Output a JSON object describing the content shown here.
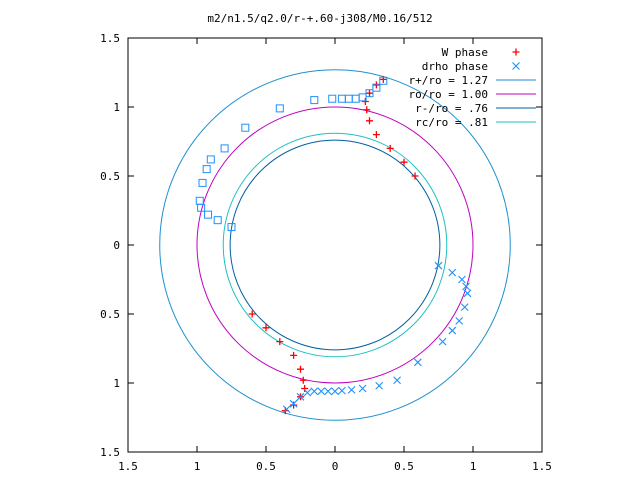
{
  "chart_data": {
    "type": "scatter",
    "title": "m2/n1.5/q2.0/r-+.60-j308/M0.16/512",
    "xlim": [
      -1.5,
      1.5
    ],
    "ylim": [
      -1.5,
      1.5
    ],
    "x_ticks": [
      {
        "value": -1.5,
        "label": "1.5"
      },
      {
        "value": -1.0,
        "label": "1"
      },
      {
        "value": -0.5,
        "label": "0.5"
      },
      {
        "value": 0.0,
        "label": "0"
      },
      {
        "value": 0.5,
        "label": "0.5"
      },
      {
        "value": 1.0,
        "label": "1"
      },
      {
        "value": 1.5,
        "label": "1.5"
      }
    ],
    "y_ticks": [
      {
        "value": 1.5,
        "label": "1.5"
      },
      {
        "value": 1.0,
        "label": "1"
      },
      {
        "value": 0.5,
        "label": "0.5"
      },
      {
        "value": 0.0,
        "label": "0"
      },
      {
        "value": -0.5,
        "label": "0.5"
      },
      {
        "value": -1.0,
        "label": "1"
      },
      {
        "value": -1.5,
        "label": "1.5"
      }
    ],
    "grid": false,
    "legend_position": "top-right",
    "series": [
      {
        "name": "W phase",
        "marker": "plus",
        "color": "#ff0000",
        "arms": [
          {
            "x": [
              0.58,
              0.5,
              0.4,
              0.3,
              0.25,
              0.23,
              0.22,
              0.25,
              0.3,
              0.35
            ],
            "y": [
              0.5,
              0.6,
              0.7,
              0.8,
              0.9,
              0.98,
              1.04,
              1.1,
              1.16,
              1.2
            ]
          },
          {
            "x": [
              -0.6,
              -0.5,
              -0.4,
              -0.3,
              -0.25,
              -0.23,
              -0.22,
              -0.25,
              -0.3,
              -0.36
            ],
            "y": [
              -0.5,
              -0.6,
              -0.7,
              -0.8,
              -0.9,
              -0.98,
              -1.04,
              -1.1,
              -1.16,
              -1.2
            ]
          }
        ]
      },
      {
        "name": "drho phase",
        "marker": "cross",
        "color": "#1e90ff",
        "arms": [
          {
            "x": [
              0.75,
              0.85,
              0.92,
              0.95,
              0.96,
              0.94,
              0.9,
              0.85,
              0.78,
              0.6,
              0.45,
              0.32,
              0.2,
              0.12,
              0.05,
              0.0,
              -0.05,
              -0.1,
              -0.15,
              -0.2,
              -0.25,
              -0.3,
              -0.35
            ],
            "y": [
              -0.15,
              -0.2,
              -0.25,
              -0.3,
              -0.35,
              -0.45,
              -0.55,
              -0.62,
              -0.7,
              -0.85,
              -0.98,
              -1.02,
              -1.04,
              -1.05,
              -1.055,
              -1.06,
              -1.06,
              -1.06,
              -1.06,
              -1.07,
              -1.1,
              -1.15,
              -1.19
            ]
          }
        ]
      },
      {
        "name": "",
        "marker": "square",
        "color": "#1e90ff",
        "arms": [
          {
            "x": [
              -0.75,
              -0.85,
              -0.92,
              -0.97,
              -0.98,
              -0.96,
              -0.93,
              -0.9,
              -0.8,
              -0.65,
              -0.4,
              -0.15,
              -0.02,
              0.05,
              0.1,
              0.15,
              0.2,
              0.25,
              0.3,
              0.35
            ],
            "y": [
              0.13,
              0.18,
              0.22,
              0.27,
              0.32,
              0.45,
              0.55,
              0.62,
              0.7,
              0.85,
              0.99,
              1.05,
              1.06,
              1.06,
              1.06,
              1.06,
              1.07,
              1.1,
              1.14,
              1.19
            ]
          }
        ]
      }
    ],
    "circles": [
      {
        "label": "r+/ro = 1.27",
        "radius": 1.27,
        "color": "#1e90cd"
      },
      {
        "label": "ro/ro = 1.00",
        "radius": 1.0,
        "color": "#c000c0"
      },
      {
        "label": "r-/ro = .76",
        "radius": 0.76,
        "color": "#0060a0"
      },
      {
        "label": "rc/ro = .81",
        "radius": 0.81,
        "color": "#20c0c0"
      }
    ]
  }
}
